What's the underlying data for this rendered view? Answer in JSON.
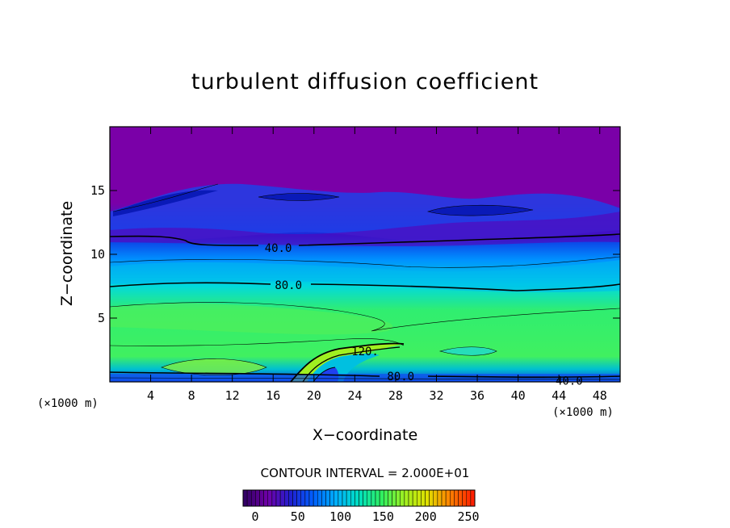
{
  "chart_data": {
    "type": "heatmap",
    "title": "turbulent diffusion coefficient",
    "xlabel": "X−coordinate",
    "ylabel": "Z−coordinate",
    "x_unit": "(×1000 m)",
    "xlim": [
      0,
      50
    ],
    "ylim": [
      0,
      20
    ],
    "x_ticks": [
      4,
      8,
      12,
      16,
      20,
      24,
      28,
      32,
      36,
      40,
      44,
      48
    ],
    "y_ticks": [
      5,
      10,
      15
    ],
    "contour_interval_label": "CONTOUR INTERVAL = 2.000E+01",
    "colorbar": {
      "range": [
        0,
        250
      ],
      "ticks": [
        0,
        50,
        100,
        150,
        200,
        250
      ],
      "colors": [
        "#330066",
        "#7000a8",
        "#2020d0",
        "#0060ff",
        "#00b0ff",
        "#00e0c0",
        "#30f060",
        "#a0f020",
        "#e0e000",
        "#ff8000",
        "#ff2000"
      ]
    },
    "contour_labels": [
      {
        "text": "40.0",
        "x": 16.5,
        "y": 10.5
      },
      {
        "text": "80.0",
        "x": 17.5,
        "y": 7.6
      },
      {
        "text": "120.",
        "x": 25.0,
        "y": 2.4
      },
      {
        "text": "80.0",
        "x": 28.5,
        "y": 0.45
      },
      {
        "text": "40.0",
        "x": 45.0,
        "y": 0.1
      }
    ]
  }
}
